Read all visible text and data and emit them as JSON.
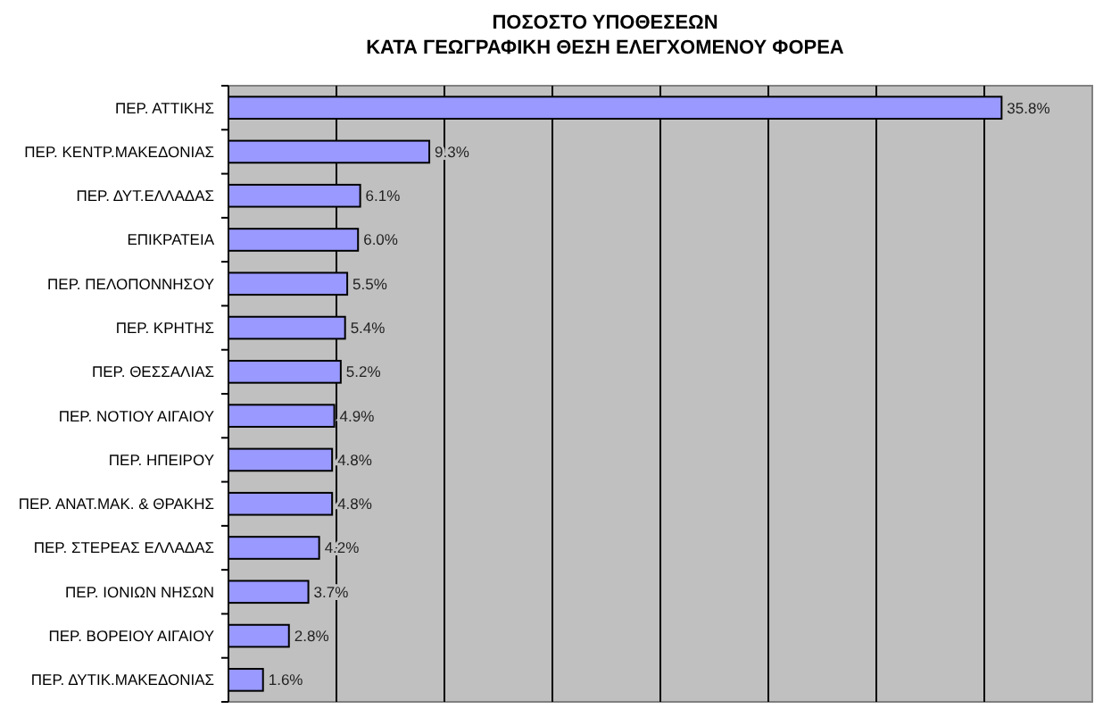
{
  "chart_data": {
    "type": "bar",
    "orientation": "horizontal",
    "title": "ΠΟΣΟΣΤΟ ΥΠΟΘΕΣΕΩΝ\nΚΑΤΑ ΓΕΩΓΡΑΦΙΚΗ ΘΕΣΗ ΕΛΕΓΧΟΜΕΝΟΥ ΦΟΡΕΑ",
    "categories": [
      "ΠΕΡ. ΑΤΤΙΚΗΣ",
      "ΠΕΡ. ΚΕΝΤΡ.ΜΑΚΕΔΟΝΙΑΣ",
      "ΠΕΡ. ΔΥΤ.ΕΛΛΑΔΑΣ",
      "ΕΠΙΚΡΑΤΕΙΑ",
      "ΠΕΡ. ΠΕΛΟΠΟΝΝΗΣΟΥ",
      "ΠΕΡ. ΚΡΗΤΗΣ",
      "ΠΕΡ. ΘΕΣΣΑΛΙΑΣ",
      "ΠΕΡ. ΝΟΤΙΟΥ ΑΙΓΑΙΟΥ",
      "ΠΕΡ. ΗΠΕΙΡΟΥ",
      "ΠΕΡ. ΑΝΑΤ.ΜΑΚ. & ΘΡΑΚΗΣ",
      "ΠΕΡ. ΣΤΕΡΕΑΣ ΕΛΛΑΔΑΣ",
      "ΠΕΡ. ΙΟΝΙΩΝ ΝΗΣΩΝ",
      "ΠΕΡ. ΒΟΡΕΙΟΥ ΑΙΓΑΙΟΥ",
      "ΠΕΡ. ΔΥΤΙΚ.ΜΑΚΕΔΟΝΙΑΣ"
    ],
    "values": [
      35.8,
      9.3,
      6.1,
      6.0,
      5.5,
      5.4,
      5.2,
      4.9,
      4.8,
      4.8,
      4.2,
      3.7,
      2.8,
      1.6
    ],
    "value_labels": [
      "35.8%",
      "9.3%",
      "6.1%",
      "6.0%",
      "5.5%",
      "5.4%",
      "5.2%",
      "4.9%",
      "4.8%",
      "4.8%",
      "4.2%",
      "3.7%",
      "2.8%",
      "1.6%"
    ],
    "color": "#9999ff",
    "xlim": [
      0,
      40
    ],
    "xticks": [
      {
        "value": 5,
        "label": null
      },
      {
        "value": 10,
        "label": null
      },
      {
        "value": 15,
        "label": null
      },
      {
        "value": 20,
        "label": null
      },
      {
        "value": 25,
        "label": null
      },
      {
        "value": 30,
        "label": null
      },
      {
        "value": 35,
        "label": null
      }
    ],
    "grid": "x",
    "tick_labels": "y"
  }
}
